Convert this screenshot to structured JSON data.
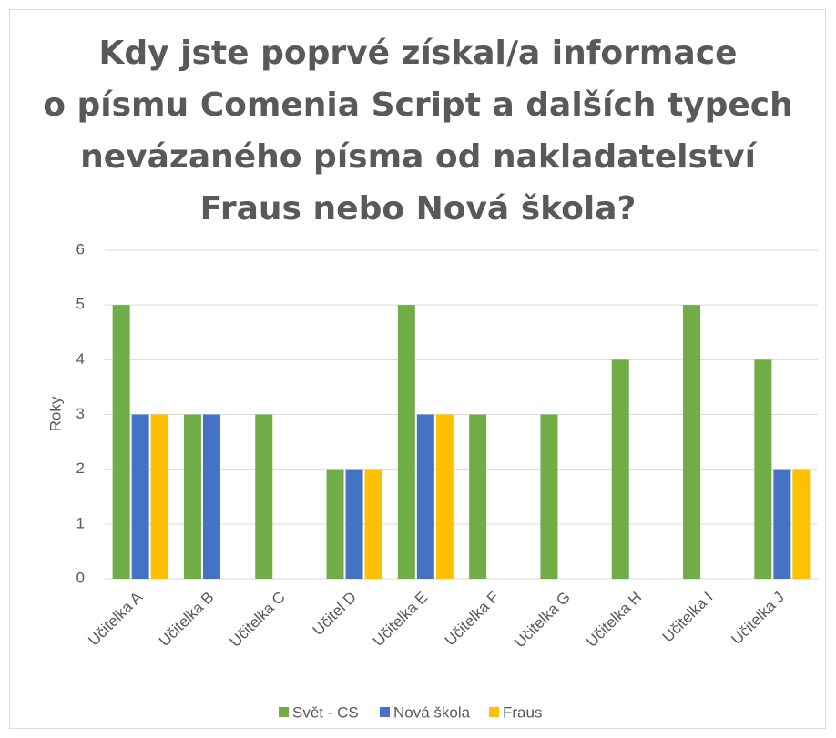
{
  "chart_data": {
    "type": "bar",
    "title": "Kdy jste poprvé získal/a informace\no písmu Comenia Script a dalších typech\nnevázaného písma od nakladatelství\nFraus nebo Nová škola?",
    "ylabel": "Roky",
    "categories": [
      "Učitelka A",
      "Učitelka B",
      "Učitelka C",
      "Učitel D",
      "Učitelka E",
      "Učitelka F",
      "Učitelka G",
      "Učitelka H",
      "Učitelka I",
      "Učitelka J"
    ],
    "series": [
      {
        "name": "Svět - CS",
        "color": "#70ad47",
        "values": [
          5,
          3,
          3,
          2,
          5,
          3,
          3,
          4,
          5,
          4
        ]
      },
      {
        "name": "Nová škola",
        "color": "#4472c4",
        "values": [
          3,
          3,
          null,
          2,
          3,
          null,
          null,
          null,
          null,
          2
        ]
      },
      {
        "name": "Fraus",
        "color": "#ffc000",
        "values": [
          3,
          null,
          null,
          2,
          3,
          null,
          null,
          null,
          null,
          2
        ]
      }
    ],
    "ylim": [
      0,
      6
    ],
    "yticks": [
      0,
      1,
      2,
      3,
      4,
      5,
      6
    ],
    "grid": true,
    "legend": "bottom"
  }
}
